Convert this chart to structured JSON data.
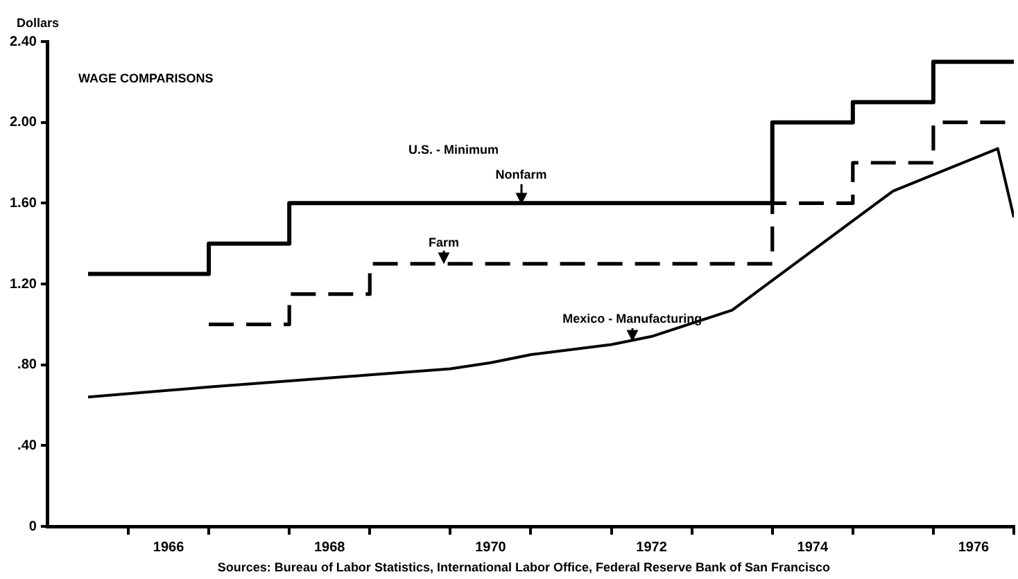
{
  "chart_data": {
    "type": "line",
    "title": "WAGE COMPARISONS",
    "ylabel": "Dollars",
    "annotations": [
      "U.S. - Minimum",
      "Sources: Bureau of Labor Statistics, International Labor Office, Federal Reserve Bank of San Francisco"
    ],
    "series": [
      {
        "name": "Nonfarm",
        "type": "step",
        "color": "#000000",
        "line_style": "solid",
        "x": [
          1965.5,
          1967,
          1968,
          1974,
          1975,
          1976,
          1977
        ],
        "values": [
          1.25,
          1.4,
          1.6,
          2.0,
          2.1,
          2.3,
          2.3
        ]
      },
      {
        "name": "Farm",
        "type": "step",
        "color": "#000000",
        "line_style": "dashed",
        "x": [
          1967,
          1968,
          1969,
          1974,
          1975,
          1976,
          1977
        ],
        "values": [
          1.0,
          1.15,
          1.3,
          1.6,
          1.8,
          2.0,
          2.0
        ]
      },
      {
        "name": "Mexico - Manufacturing",
        "type": "line",
        "color": "#000000",
        "line_style": "solid",
        "x": [
          1965.5,
          1967,
          1968,
          1969,
          1970,
          1970.5,
          1971,
          1972,
          1972.5,
          1973.5,
          1975.5,
          1976.8,
          1977
        ],
        "values": [
          0.64,
          0.69,
          0.72,
          0.75,
          0.78,
          0.81,
          0.85,
          0.9,
          0.94,
          1.07,
          1.66,
          1.87,
          1.53
        ]
      }
    ],
    "xlim": [
      1965,
      1977
    ],
    "xticks": [
      {
        "value": 1966,
        "label": null
      },
      {
        "value": 1966.5,
        "label": "1966"
      },
      {
        "value": 1967,
        "label": null
      },
      {
        "value": 1968,
        "label": null
      },
      {
        "value": 1968.5,
        "label": "1968"
      },
      {
        "value": 1969,
        "label": null
      },
      {
        "value": 1970,
        "label": null
      },
      {
        "value": 1970.5,
        "label": "1970"
      },
      {
        "value": 1971,
        "label": null
      },
      {
        "value": 1972,
        "label": null
      },
      {
        "value": 1972.5,
        "label": "1972"
      },
      {
        "value": 1973,
        "label": null
      },
      {
        "value": 1974,
        "label": null
      },
      {
        "value": 1974.5,
        "label": "1974"
      },
      {
        "value": 1975,
        "label": null
      },
      {
        "value": 1976,
        "label": null
      },
      {
        "value": 1976.5,
        "label": "1976"
      },
      {
        "value": 1977,
        "label": null
      }
    ],
    "ylim": [
      0,
      2.4
    ],
    "yticks": [
      0,
      {
        "value": 0.4,
        "label": ".40"
      },
      {
        "value": 0.8,
        "label": ".80"
      },
      {
        "value": 1.2,
        "label": "1.20"
      },
      {
        "value": 1.6,
        "label": "1.60"
      },
      {
        "value": 2.0,
        "label": "2.00"
      },
      {
        "value": 2.4,
        "label": "2.40"
      }
    ],
    "grid": false,
    "legend": false,
    "marker": "none"
  }
}
